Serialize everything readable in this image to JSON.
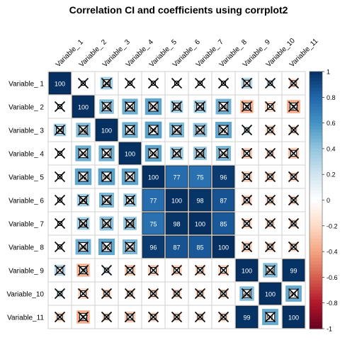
{
  "chart_data": {
    "type": "heatmap",
    "title": "Correlation CI and coefficients using corrplot2",
    "variables": [
      "Variable_ 1",
      "Variable_ 2",
      "Variable_ 3",
      "Variable_ 4",
      "Variable_ 5",
      "Variable_ 6",
      "Variable_ 7",
      "Variable_ 8",
      "Variable_ 9",
      "Variable_10",
      "Variable_11"
    ],
    "matrix": [
      [
        100,
        6,
        34,
        -2,
        5,
        4,
        4,
        5,
        27,
        13,
        -18
      ],
      [
        6,
        100,
        43,
        49,
        53,
        34,
        35,
        48,
        -36,
        -23,
        -37
      ],
      [
        34,
        43,
        100,
        49,
        54,
        45,
        41,
        52,
        13,
        -19,
        -15
      ],
      [
        -2,
        49,
        49,
        100,
        53,
        37,
        38,
        45,
        -25,
        -16,
        -26
      ],
      [
        5,
        53,
        54,
        53,
        100,
        77,
        75,
        96,
        -24,
        -20,
        -19
      ],
      [
        4,
        34,
        45,
        37,
        77,
        100,
        98,
        87,
        -22,
        -18,
        -17
      ],
      [
        4,
        35,
        41,
        38,
        75,
        98,
        100,
        85,
        -21,
        -18,
        -16
      ],
      [
        5,
        48,
        52,
        45,
        96,
        87,
        85,
        100,
        -23,
        -19,
        -18
      ],
      [
        27,
        -36,
        13,
        -25,
        -24,
        -22,
        -21,
        -23,
        100,
        43,
        99
      ],
      [
        13,
        -23,
        -19,
        -16,
        -20,
        -18,
        -18,
        -19,
        43,
        100,
        51
      ],
      [
        -18,
        -37,
        -15,
        -26,
        -19,
        -17,
        -16,
        -18,
        99,
        51,
        100
      ]
    ],
    "printed_labels": [
      [
        0,
        0
      ],
      [
        0,
        2
      ],
      [
        1,
        1
      ],
      [
        1,
        2
      ],
      [
        1,
        3
      ],
      [
        1,
        4
      ],
      [
        1,
        5
      ],
      [
        1,
        6
      ],
      [
        1,
        7
      ],
      [
        1,
        8
      ],
      [
        1,
        10
      ],
      [
        2,
        0
      ],
      [
        2,
        1
      ],
      [
        2,
        2
      ],
      [
        2,
        3
      ],
      [
        2,
        4
      ],
      [
        2,
        5
      ],
      [
        2,
        6
      ],
      [
        2,
        7
      ],
      [
        3,
        1
      ],
      [
        3,
        2
      ],
      [
        3,
        3
      ],
      [
        3,
        4
      ],
      [
        3,
        5
      ],
      [
        3,
        6
      ],
      [
        3,
        7
      ],
      [
        4,
        1
      ],
      [
        4,
        2
      ],
      [
        4,
        3
      ],
      [
        4,
        4
      ],
      [
        4,
        5
      ],
      [
        4,
        6
      ],
      [
        4,
        7
      ],
      [
        5,
        1
      ],
      [
        5,
        2
      ],
      [
        5,
        3
      ],
      [
        5,
        4
      ],
      [
        5,
        5
      ],
      [
        5,
        6
      ],
      [
        5,
        7
      ],
      [
        6,
        1
      ],
      [
        6,
        2
      ],
      [
        6,
        3
      ],
      [
        6,
        4
      ],
      [
        6,
        5
      ],
      [
        6,
        6
      ],
      [
        6,
        7
      ],
      [
        7,
        1
      ],
      [
        7,
        2
      ],
      [
        7,
        3
      ],
      [
        7,
        4
      ],
      [
        7,
        5
      ],
      [
        7,
        6
      ],
      [
        7,
        7
      ],
      [
        8,
        1
      ],
      [
        8,
        8
      ],
      [
        8,
        9
      ],
      [
        8,
        10
      ],
      [
        9,
        8
      ],
      [
        9,
        9
      ],
      [
        9,
        10
      ],
      [
        10,
        1
      ],
      [
        10,
        8
      ],
      [
        10,
        9
      ],
      [
        10,
        10
      ]
    ],
    "colorbar": {
      "range": [
        -1,
        1
      ],
      "ticks": [
        "1",
        "0.8",
        "0.6",
        "0.4",
        "0.2",
        "0",
        "-0.2",
        "-0.4",
        "-0.6",
        "-0.8",
        "-1"
      ]
    },
    "colors": {
      "negative": "#67001F",
      "neutral": "#FFFFFF",
      "positive": "#053061"
    },
    "grid": true,
    "legend": "colorbar-right"
  }
}
